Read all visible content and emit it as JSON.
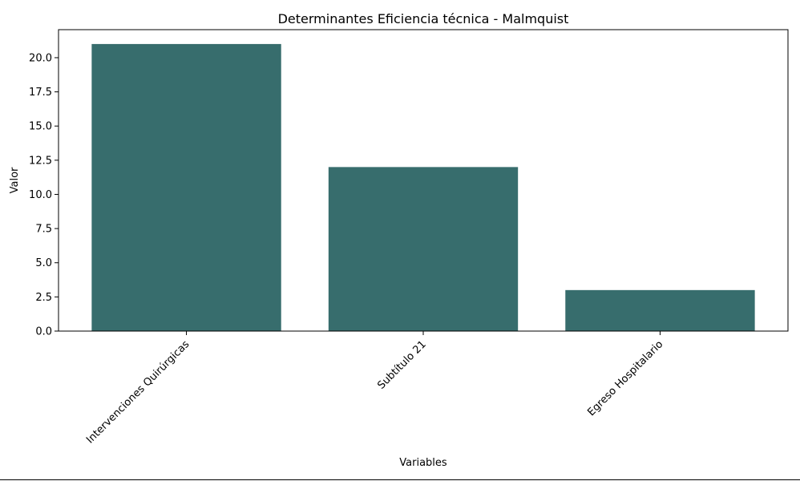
{
  "chart_data": {
    "type": "bar",
    "title": "Determinantes Eficiencia técnica - Malmquist",
    "xlabel": "Variables",
    "ylabel": "Valor",
    "categories": [
      "Intervenciones Quirúrgicas",
      "Subtítulo 21",
      "Egreso Hospitalario"
    ],
    "values": [
      21,
      12,
      3
    ],
    "ylim": [
      0,
      22.05
    ],
    "yticks": [
      0.0,
      2.5,
      5.0,
      7.5,
      10.0,
      12.5,
      15.0,
      17.5,
      20.0
    ],
    "ytick_labels": [
      "0.0",
      "2.5",
      "5.0",
      "7.5",
      "10.0",
      "12.5",
      "15.0",
      "17.5",
      "20.0"
    ],
    "bar_color": "#376d6d",
    "grid": false,
    "legend": "none"
  }
}
